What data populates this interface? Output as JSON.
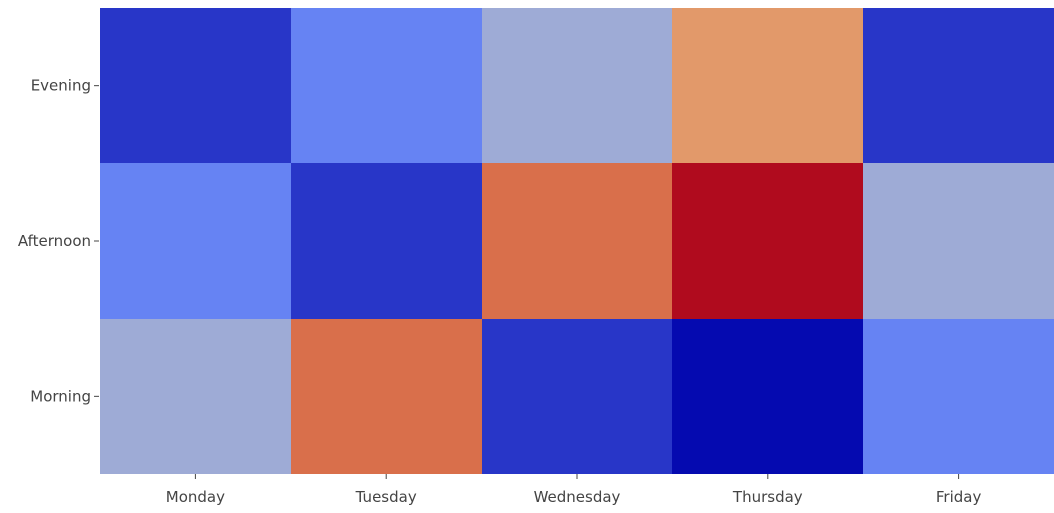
{
  "chart_data": {
    "type": "heatmap",
    "x": [
      "Monday",
      "Tuesday",
      "Wednesday",
      "Thursday",
      "Friday"
    ],
    "y": [
      "Morning",
      "Afternoon",
      "Evening"
    ],
    "z": [
      [
        2,
        3,
        4,
        6,
        2
      ],
      [
        3,
        2,
        6,
        8,
        4
      ],
      [
        4,
        6,
        2,
        1,
        3
      ]
    ],
    "colorscale": [
      [
        0.0,
        "#0508b0"
      ],
      [
        0.35,
        "#6a89f7"
      ],
      [
        0.5,
        "#bebebe"
      ],
      [
        0.6,
        "#dcaa84"
      ],
      [
        0.7,
        "#e6915a"
      ],
      [
        1.0,
        "#b20a1c"
      ]
    ],
    "cell_colors": [
      [
        "#2836c8",
        "#6683f3",
        "#9eabd6",
        "#e2996a",
        "#2836c8"
      ],
      [
        "#6683f3",
        "#2836c8",
        "#d96f4b",
        "#b00b1e",
        "#9eabd6"
      ],
      [
        "#9eabd6",
        "#d96f4b",
        "#2836c8",
        "#050ab0",
        "#6683f3"
      ]
    ],
    "title": "",
    "xlabel": "",
    "ylabel": "",
    "grid": false,
    "legend": "none"
  }
}
